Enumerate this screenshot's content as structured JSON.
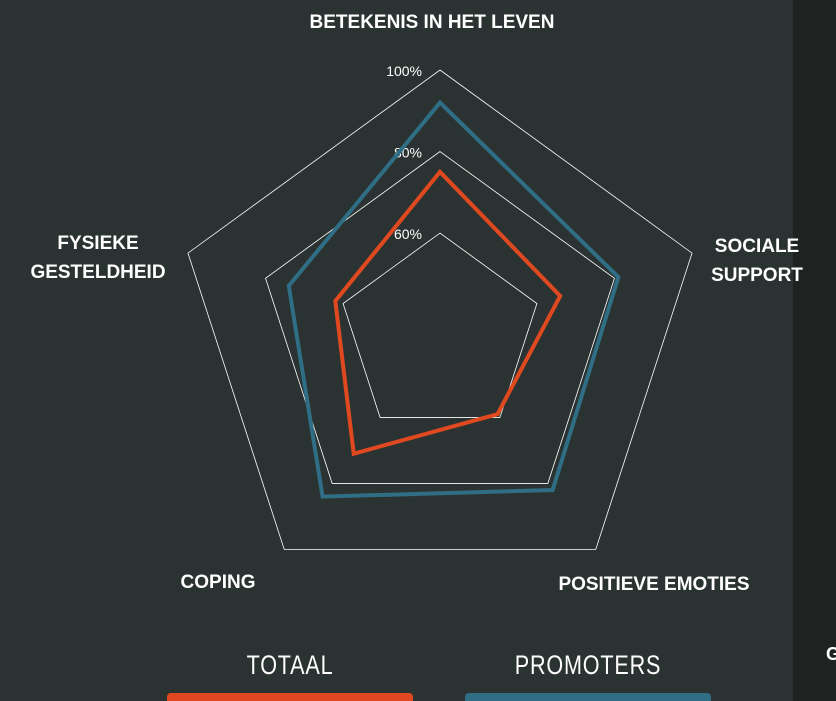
{
  "chart_data": {
    "type": "radar",
    "categories": [
      "BETEKENIS IN HET LEVEN",
      "SOCIALE SUPPORT",
      "POSITIEVE EMOTIES",
      "COPING",
      "FYSIEKE GESTELDHEID"
    ],
    "series": [
      {
        "name": "TOTAAL",
        "color": "#e0491f",
        "values": [
          75,
          66,
          59,
          71,
          62
        ]
      },
      {
        "name": "PROMOTERS",
        "color": "#2f6e84",
        "values": [
          92,
          81,
          82,
          84,
          74
        ]
      }
    ],
    "rlim": [
      35,
      100
    ],
    "rticks": [
      {
        "value": 60,
        "label": "60%"
      },
      {
        "value": 80,
        "label": "80%"
      },
      {
        "value": 100,
        "label": "100%"
      }
    ],
    "grid": true,
    "cut_off_label": "G"
  }
}
